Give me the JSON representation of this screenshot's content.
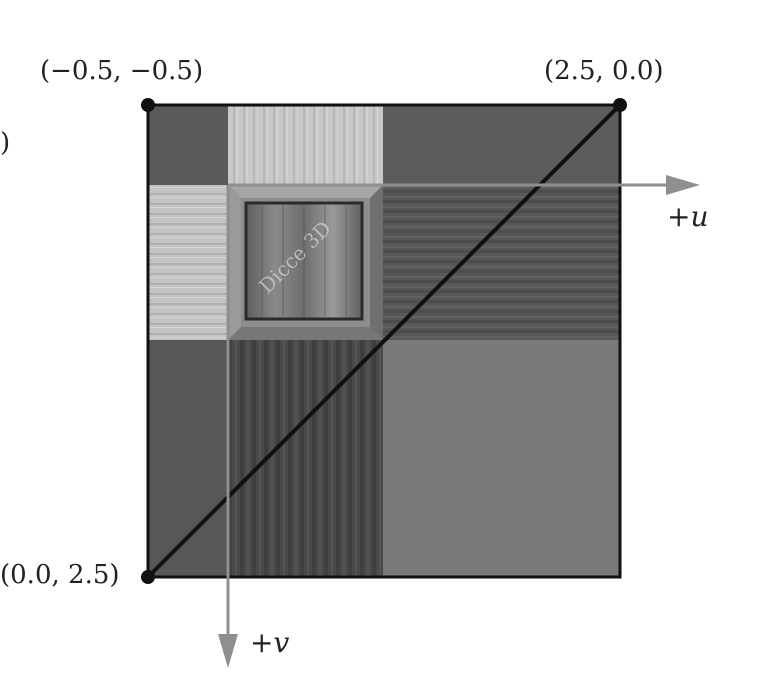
{
  "diagram": {
    "corners": {
      "top_left": "(−0.5, −0.5)",
      "top_right": "(2.5, 0.0)",
      "bottom_left": "(0.0, 2.5)",
      "left_edge_fragment": ")"
    },
    "axes": {
      "u_label": "+u",
      "v_label": "+v"
    },
    "texture": {
      "watermark": "Dicce 3D"
    }
  }
}
